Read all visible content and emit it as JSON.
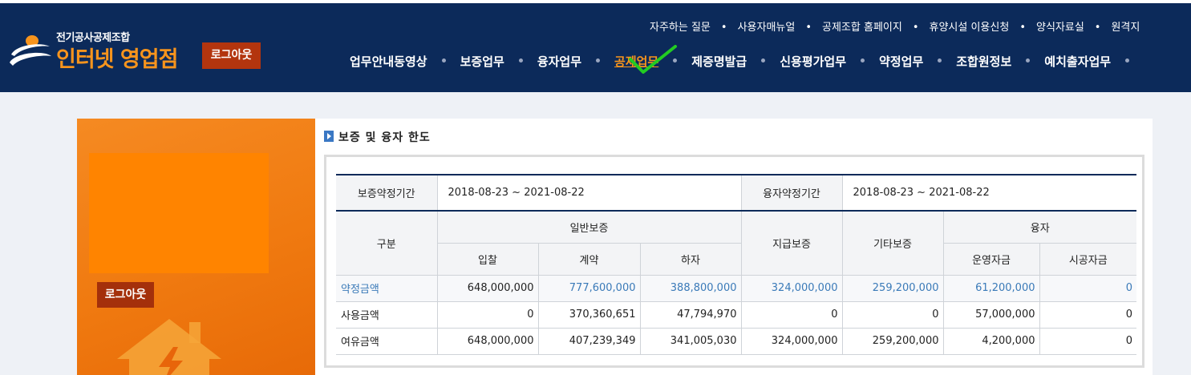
{
  "header": {
    "logo_small": "전기공사공제조합",
    "logo_big": "인터넷 영업점",
    "logout_label": "로그아웃",
    "util_links": [
      "자주하는 질문",
      "사용자매뉴얼",
      "공제조합 홈페이지",
      "휴양시설 이용신청",
      "양식자료실",
      "원격지"
    ],
    "util_separator": "•",
    "menus": [
      {
        "label": "업무안내동영상",
        "active": false
      },
      {
        "label": "보증업무",
        "active": false
      },
      {
        "label": "융자업무",
        "active": false
      },
      {
        "label": "공제업무",
        "active": true
      },
      {
        "label": "제증명발급",
        "active": false
      },
      {
        "label": "신용평가업무",
        "active": false
      },
      {
        "label": "약정업무",
        "active": false
      },
      {
        "label": "조합원정보",
        "active": false
      },
      {
        "label": "예치출자업무",
        "active": false
      }
    ],
    "colors": {
      "bg": "#0c2a5a",
      "accent": "#f7941d",
      "logout": "#b3350e"
    }
  },
  "sidebar": {
    "logout_label": "로그아웃"
  },
  "section": {
    "title": "보증 및 융자 한도"
  },
  "table": {
    "guarantee_period_label": "보증약정기간",
    "guarantee_period_value": "2018-08-23 ~ 2021-08-22",
    "loan_period_label": "융자약정기간",
    "loan_period_value": "2018-08-23 ~ 2021-08-22",
    "headers": {
      "category": "구분",
      "general_guarantee": "일반보증",
      "bid": "입찰",
      "contract": "계약",
      "subcontract": "하자",
      "payment_guarantee": "지급보증",
      "other_guarantee": "기타보증",
      "loan": "융자",
      "operating_fund": "운영자금",
      "construction_fund": "시공자금"
    },
    "rows": [
      {
        "label": "약정금액",
        "values": [
          "648,000,000",
          "777,600,000",
          "388,800,000",
          "324,000,000",
          "259,200,000",
          "61,200,000",
          "0"
        ]
      },
      {
        "label": "사용금액",
        "values": [
          "0",
          "370,360,651",
          "47,794,970",
          "0",
          "0",
          "57,000,000",
          "0"
        ]
      },
      {
        "label": "여유금액",
        "values": [
          "648,000,000",
          "407,239,349",
          "341,005,030",
          "324,000,000",
          "259,200,000",
          "4,200,000",
          "0"
        ]
      }
    ]
  }
}
